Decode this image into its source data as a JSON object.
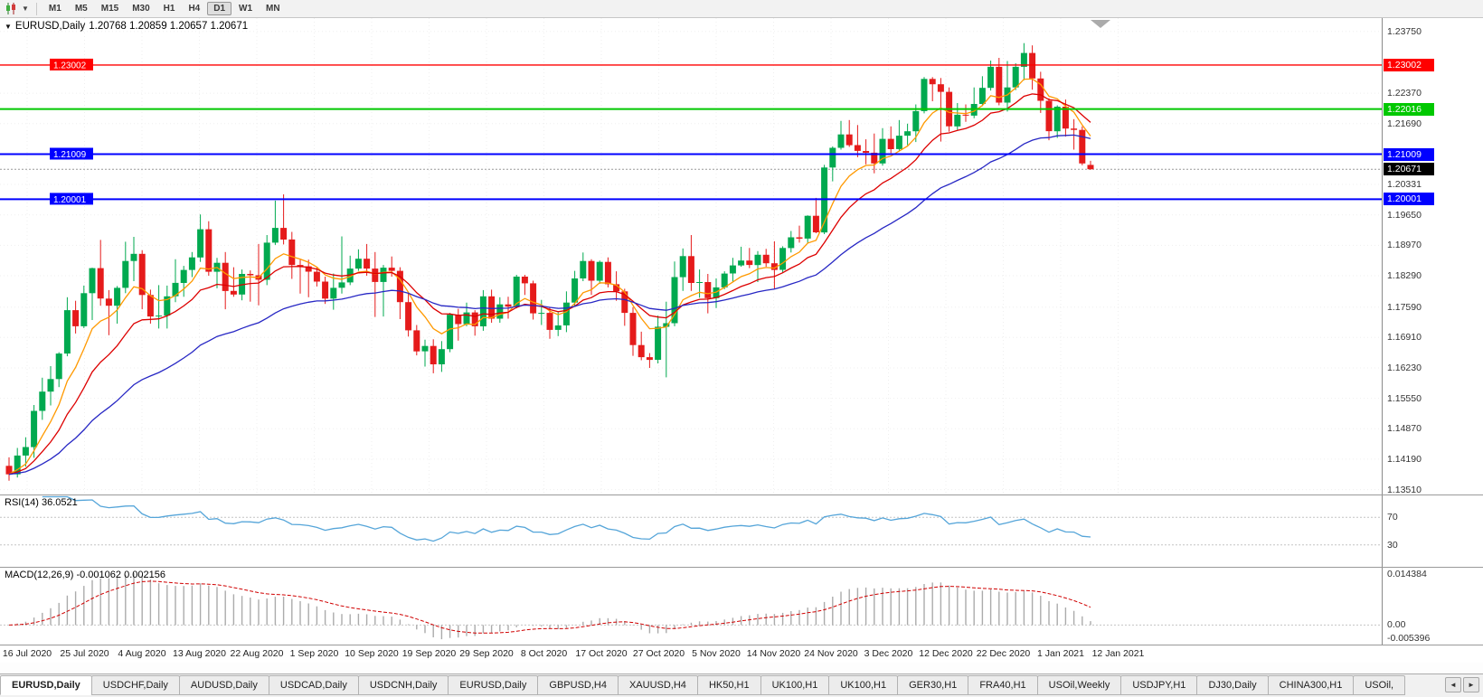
{
  "toolbar": {
    "timeframes": [
      "M1",
      "M5",
      "M15",
      "M30",
      "H1",
      "H4",
      "D1",
      "W1",
      "MN"
    ],
    "active_timeframe": "D1"
  },
  "chart": {
    "symbol_period": "EURUSD,Daily",
    "ohlc_text": "1.20768 1.20859 1.20657 1.20671"
  },
  "rsi_panel": {
    "label": "RSI(14) 36.0521"
  },
  "macd_panel": {
    "label": "MACD(12,26,9) -0.001062 0.002156"
  },
  "chart_data": {
    "type": "candlestick",
    "symbol": "EURUSD",
    "period": "Daily",
    "current_bar": {
      "open": 1.20768,
      "high": 1.20859,
      "low": 1.20657,
      "close": 1.20671
    },
    "y_axis": {
      "range": [
        1.134,
        1.2405
      ],
      "ticks": [
        "1.23750",
        "1.22370",
        "1.21690",
        "1.20331",
        "1.19650",
        "1.18970",
        "1.18290",
        "1.17590",
        "1.16910",
        "1.16230",
        "1.15550",
        "1.14870",
        "1.14190",
        "1.13510"
      ]
    },
    "x_labels": [
      "16 Jul 2020",
      "25 Jul 2020",
      "4 Aug 2020",
      "13 Aug 2020",
      "22 Aug 2020",
      "1 Sep 2020",
      "10 Sep 2020",
      "19 Sep 2020",
      "29 Sep 2020",
      "8 Oct 2020",
      "17 Oct 2020",
      "27 Oct 2020",
      "5 Nov 2020",
      "14 Nov 2020",
      "24 Nov 2020",
      "3 Dec 2020",
      "12 Dec 2020",
      "22 Dec 2020",
      "1 Jan 2021",
      "12 Jan 2021"
    ],
    "hlines": [
      {
        "price": 1.23002,
        "label": "1.23002",
        "color": "#ff0000",
        "thickness": 1.4,
        "inline_label": true
      },
      {
        "price": 1.22016,
        "label": "1.22016",
        "color": "#00c800",
        "thickness": 2,
        "inline_label": false
      },
      {
        "price": 1.21009,
        "label": "1.21009",
        "color": "#0000ff",
        "thickness": 2,
        "inline_label": true
      },
      {
        "price": 1.20001,
        "label": "1.20001",
        "color": "#0000ff",
        "thickness": 2,
        "inline_label": true
      }
    ],
    "current_price": {
      "value": 1.20671,
      "label": "1.20671"
    },
    "moving_averages": [
      {
        "period": 7,
        "color": "#ff9900"
      },
      {
        "period": 14,
        "color": "#dd0000"
      },
      {
        "period": 34,
        "color": "#2727c4"
      }
    ],
    "colors": {
      "bull": "#00a94f",
      "bear": "#e51b1b",
      "grid": "#efefef",
      "rsi_line": "#55a5d9",
      "macd_hist": "#ababab",
      "macd_signal": "#d00000"
    },
    "rsi": {
      "period": 14,
      "value": 36.0521,
      "levels": [
        "70",
        "30"
      ]
    },
    "macd": {
      "fast": 12,
      "slow": 26,
      "signal": 9,
      "main_value": -0.001062,
      "signal_value": 0.002156,
      "axis": {
        "max": "0.014384",
        "zero": "0.00",
        "min": "-0.005396"
      }
    },
    "candles": [
      [
        1.1404,
        1.1423,
        1.1371,
        1.1385
      ],
      [
        1.1385,
        1.1444,
        1.1378,
        1.1427
      ],
      [
        1.1427,
        1.1468,
        1.1402,
        1.1446
      ],
      [
        1.1446,
        1.154,
        1.1422,
        1.1527
      ],
      [
        1.1527,
        1.1601,
        1.1507,
        1.157
      ],
      [
        1.157,
        1.1627,
        1.1539,
        1.1598
      ],
      [
        1.1598,
        1.1658,
        1.158,
        1.1655
      ],
      [
        1.1655,
        1.1781,
        1.1649,
        1.1752
      ],
      [
        1.1752,
        1.1773,
        1.17,
        1.1716
      ],
      [
        1.1716,
        1.1807,
        1.1712,
        1.179
      ],
      [
        1.179,
        1.1847,
        1.173,
        1.1846
      ],
      [
        1.1846,
        1.1909,
        1.1762,
        1.1778
      ],
      [
        1.1778,
        1.1797,
        1.1696,
        1.1762
      ],
      [
        1.1762,
        1.1806,
        1.1722,
        1.1802
      ],
      [
        1.1802,
        1.1905,
        1.179,
        1.1862
      ],
      [
        1.1862,
        1.1916,
        1.1817,
        1.1878
      ],
      [
        1.1878,
        1.1886,
        1.1754,
        1.1786
      ],
      [
        1.1786,
        1.1798,
        1.1722,
        1.1738
      ],
      [
        1.1738,
        1.1808,
        1.1711,
        1.174
      ],
      [
        1.174,
        1.1807,
        1.1711,
        1.1783
      ],
      [
        1.1783,
        1.1866,
        1.177,
        1.1813
      ],
      [
        1.1813,
        1.1851,
        1.1782,
        1.1842
      ],
      [
        1.1842,
        1.1882,
        1.1826,
        1.187
      ],
      [
        1.187,
        1.1966,
        1.186,
        1.1933
      ],
      [
        1.1933,
        1.1951,
        1.1829,
        1.1838
      ],
      [
        1.1838,
        1.1869,
        1.1801,
        1.1858
      ],
      [
        1.1858,
        1.1882,
        1.1754,
        1.1795
      ],
      [
        1.1795,
        1.1848,
        1.1782,
        1.1787
      ],
      [
        1.1787,
        1.1843,
        1.1774,
        1.1833
      ],
      [
        1.1833,
        1.1841,
        1.1771,
        1.183
      ],
      [
        1.183,
        1.19,
        1.1763,
        1.182
      ],
      [
        1.182,
        1.192,
        1.1808,
        1.1903
      ],
      [
        1.1903,
        1.1997,
        1.1898,
        1.1936
      ],
      [
        1.1936,
        1.2011,
        1.1899,
        1.191
      ],
      [
        1.191,
        1.1927,
        1.1822,
        1.1853
      ],
      [
        1.1853,
        1.1865,
        1.1789,
        1.185
      ],
      [
        1.185,
        1.1865,
        1.1781,
        1.1838
      ],
      [
        1.1838,
        1.1849,
        1.1805,
        1.1816
      ],
      [
        1.1816,
        1.1827,
        1.1766,
        1.1778
      ],
      [
        1.1778,
        1.1834,
        1.1753,
        1.1802
      ],
      [
        1.1802,
        1.1917,
        1.1789,
        1.1814
      ],
      [
        1.1814,
        1.1874,
        1.1808,
        1.1845
      ],
      [
        1.1845,
        1.1888,
        1.184,
        1.1867
      ],
      [
        1.1867,
        1.19,
        1.1829,
        1.1845
      ],
      [
        1.1845,
        1.1882,
        1.1737,
        1.1815
      ],
      [
        1.1815,
        1.1853,
        1.1738,
        1.1847
      ],
      [
        1.1847,
        1.1872,
        1.1827,
        1.184
      ],
      [
        1.184,
        1.1848,
        1.1732,
        1.177
      ],
      [
        1.177,
        1.1789,
        1.1693,
        1.1707
      ],
      [
        1.1707,
        1.1719,
        1.1651,
        1.166
      ],
      [
        1.166,
        1.1686,
        1.1626,
        1.1672
      ],
      [
        1.1672,
        1.1687,
        1.1611,
        1.1631
      ],
      [
        1.1631,
        1.1683,
        1.1614,
        1.1665
      ],
      [
        1.1665,
        1.1746,
        1.1658,
        1.1742
      ],
      [
        1.1742,
        1.1755,
        1.1684,
        1.1721
      ],
      [
        1.1721,
        1.1769,
        1.1716,
        1.1747
      ],
      [
        1.1747,
        1.1752,
        1.1695,
        1.1716
      ],
      [
        1.1716,
        1.1797,
        1.1706,
        1.1783
      ],
      [
        1.1783,
        1.1798,
        1.1724,
        1.1733
      ],
      [
        1.1733,
        1.1781,
        1.1724,
        1.1765
      ],
      [
        1.1765,
        1.1782,
        1.1733,
        1.176
      ],
      [
        1.176,
        1.1831,
        1.1756,
        1.1827
      ],
      [
        1.1827,
        1.1831,
        1.1786,
        1.1812
      ],
      [
        1.1812,
        1.1818,
        1.1731,
        1.1745
      ],
      [
        1.1745,
        1.1775,
        1.1719,
        1.1746
      ],
      [
        1.1746,
        1.1758,
        1.1688,
        1.1708
      ],
      [
        1.1708,
        1.1747,
        1.1694,
        1.1718
      ],
      [
        1.1718,
        1.1794,
        1.1703,
        1.1769
      ],
      [
        1.1769,
        1.184,
        1.176,
        1.1823
      ],
      [
        1.1823,
        1.1881,
        1.1817,
        1.1862
      ],
      [
        1.1862,
        1.1866,
        1.1786,
        1.1818
      ],
      [
        1.1818,
        1.1863,
        1.1811,
        1.186
      ],
      [
        1.186,
        1.187,
        1.1803,
        1.181
      ],
      [
        1.181,
        1.1839,
        1.1773,
        1.1794
      ],
      [
        1.1794,
        1.18,
        1.1717,
        1.1746
      ],
      [
        1.1746,
        1.1759,
        1.165,
        1.1674
      ],
      [
        1.1674,
        1.1704,
        1.164,
        1.1647
      ],
      [
        1.1647,
        1.1656,
        1.1623,
        1.1641
      ],
      [
        1.1641,
        1.174,
        1.1633,
        1.1715
      ],
      [
        1.1715,
        1.1771,
        1.1602,
        1.1723
      ],
      [
        1.1723,
        1.1861,
        1.1716,
        1.1826
      ],
      [
        1.1826,
        1.189,
        1.1795,
        1.1873
      ],
      [
        1.1873,
        1.192,
        1.1795,
        1.1813
      ],
      [
        1.1813,
        1.1843,
        1.178,
        1.1815
      ],
      [
        1.1815,
        1.1833,
        1.1745,
        1.1779
      ],
      [
        1.1779,
        1.1823,
        1.1757,
        1.1803
      ],
      [
        1.1803,
        1.1839,
        1.1799,
        1.1834
      ],
      [
        1.1834,
        1.1869,
        1.1814,
        1.1852
      ],
      [
        1.1852,
        1.1894,
        1.1849,
        1.1863
      ],
      [
        1.1863,
        1.1891,
        1.1846,
        1.1853
      ],
      [
        1.1853,
        1.1884,
        1.1815,
        1.1876
      ],
      [
        1.1876,
        1.1889,
        1.1849,
        1.1857
      ],
      [
        1.1857,
        1.1906,
        1.18,
        1.1842
      ],
      [
        1.1842,
        1.1895,
        1.1835,
        1.1891
      ],
      [
        1.1891,
        1.1929,
        1.1881,
        1.1915
      ],
      [
        1.1915,
        1.1941,
        1.1903,
        1.1912
      ],
      [
        1.1912,
        1.1964,
        1.1902,
        1.1963
      ],
      [
        1.1963,
        1.2003,
        1.1924,
        1.1926
      ],
      [
        1.1926,
        1.2077,
        1.1922,
        1.2071
      ],
      [
        1.2071,
        1.2118,
        1.204,
        1.2115
      ],
      [
        1.2115,
        1.2175,
        1.2111,
        1.2145
      ],
      [
        1.2145,
        1.2177,
        1.2117,
        1.2121
      ],
      [
        1.2121,
        1.2166,
        1.2094,
        1.2108
      ],
      [
        1.2108,
        1.2134,
        1.2078,
        1.2104
      ],
      [
        1.2104,
        1.2147,
        1.2058,
        1.208
      ],
      [
        1.208,
        1.2159,
        1.2075,
        1.2135
      ],
      [
        1.2135,
        1.2163,
        1.2103,
        1.2112
      ],
      [
        1.2112,
        1.2177,
        1.2109,
        1.2142
      ],
      [
        1.2142,
        1.2169,
        1.2121,
        1.2152
      ],
      [
        1.2152,
        1.2212,
        1.2128,
        1.2197
      ],
      [
        1.2197,
        1.2273,
        1.2192,
        1.2269
      ],
      [
        1.2269,
        1.2273,
        1.2219,
        1.2257
      ],
      [
        1.2257,
        1.2271,
        1.2129,
        1.224
      ],
      [
        1.224,
        1.225,
        1.2151,
        1.2163
      ],
      [
        1.2163,
        1.2215,
        1.2155,
        1.2189
      ],
      [
        1.2189,
        1.2212,
        1.2173,
        1.2187
      ],
      [
        1.2187,
        1.225,
        1.2181,
        1.2213
      ],
      [
        1.2213,
        1.2275,
        1.2208,
        1.2249
      ],
      [
        1.2249,
        1.231,
        1.2243,
        1.2296
      ],
      [
        1.2296,
        1.2316,
        1.221,
        1.2216
      ],
      [
        1.2216,
        1.2309,
        1.2196,
        1.225
      ],
      [
        1.225,
        1.2304,
        1.2244,
        1.2296
      ],
      [
        1.2296,
        1.2349,
        1.2266,
        1.2327
      ],
      [
        1.2327,
        1.2344,
        1.2245,
        1.227
      ],
      [
        1.227,
        1.2285,
        1.2193,
        1.222
      ],
      [
        1.222,
        1.2226,
        1.2132,
        1.2152
      ],
      [
        1.2152,
        1.221,
        1.2137,
        1.2207
      ],
      [
        1.2207,
        1.2223,
        1.214,
        1.2158
      ],
      [
        1.2158,
        1.2179,
        1.2111,
        1.2155
      ],
      [
        1.2155,
        1.2163,
        1.2076,
        1.208
      ],
      [
        1.20768,
        1.20859,
        1.20657,
        1.20671
      ]
    ]
  },
  "tabs": {
    "scroll_left": "◄",
    "scroll_right": "►",
    "active_index": 0,
    "items": [
      "EURUSD,Daily",
      "USDCHF,Daily",
      "AUDUSD,Daily",
      "USDCAD,Daily",
      "USDCNH,Daily",
      "EURUSD,Daily",
      "GBPUSD,H4",
      "XAUUSD,H4",
      "HK50,H1",
      "UK100,H1",
      "UK100,H1",
      "GER30,H1",
      "FRA40,H1",
      "USOil,Weekly",
      "USDJPY,H1",
      "DJ30,Daily",
      "CHINA300,H1",
      "USOil,"
    ]
  }
}
